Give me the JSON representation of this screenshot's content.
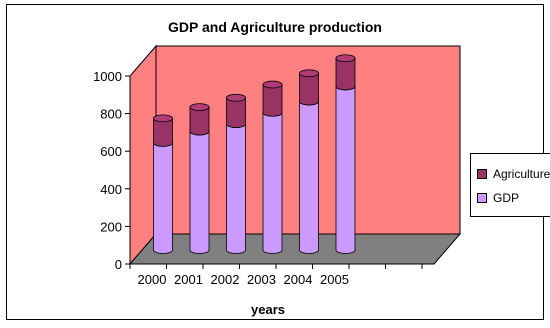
{
  "chart_data": {
    "type": "bar",
    "title": "GDP and Agriculture production",
    "xlabel": "years",
    "ylabel": "",
    "categories": [
      "2000",
      "2001",
      "2002",
      "2003",
      "2004",
      "2005"
    ],
    "series": [
      {
        "name": "GDP",
        "values": [
          570,
          630,
          670,
          730,
          790,
          870
        ]
      },
      {
        "name": "Agriculture",
        "values": [
          130,
          130,
          140,
          150,
          150,
          150
        ]
      }
    ],
    "ylim": [
      0,
      1000
    ],
    "yticks": [
      "0",
      "200",
      "400",
      "600",
      "800",
      "1000"
    ],
    "stacked": true,
    "style": "3d-cylinder",
    "legend_position": "right",
    "colors": {
      "plot_back_wall": "#FF8080",
      "plot_floor": "#808080",
      "GDP": "#CC99FF",
      "Agriculture": "#993366"
    }
  }
}
